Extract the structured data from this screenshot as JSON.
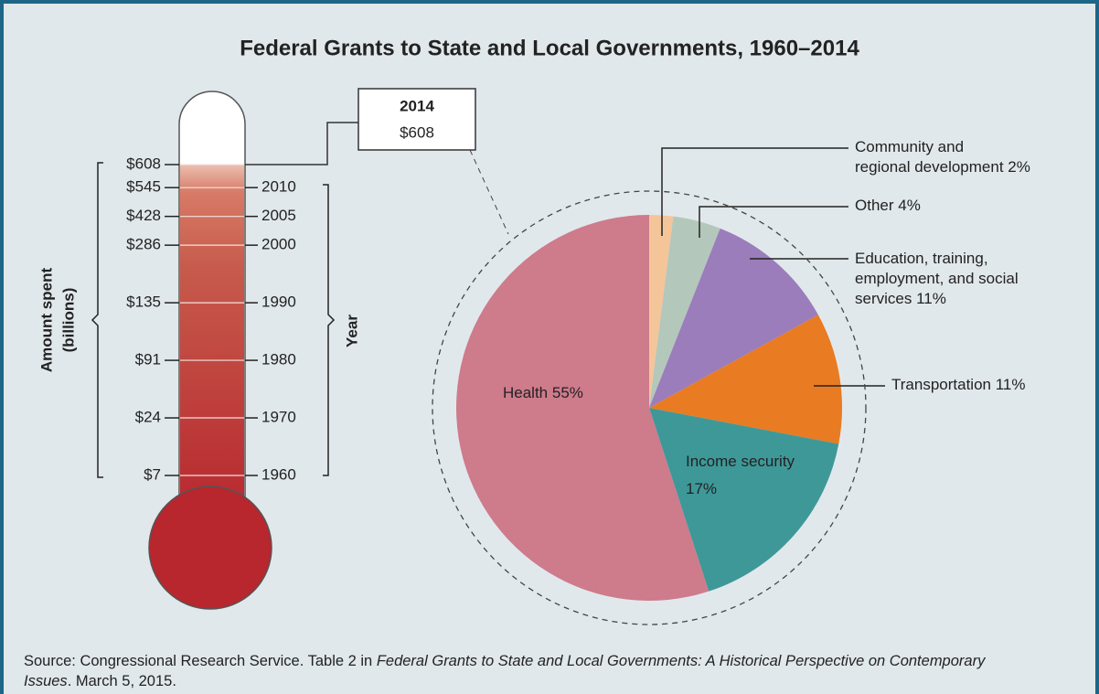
{
  "chart_data": [
    {
      "type": "thermometer",
      "title": "Federal Grants to State and Local Governments, 1960–2014",
      "y_label_lines": [
        "Amount spent",
        "(billions)"
      ],
      "x_label": "Year",
      "x": [
        1960,
        1970,
        1980,
        1990,
        2000,
        2005,
        2010,
        2014
      ],
      "values": [
        7,
        24,
        91,
        135,
        286,
        428,
        545,
        608
      ],
      "value_labels": [
        "$7",
        "$24",
        "$91",
        "$135",
        "$286",
        "$428",
        "$545",
        "$608"
      ],
      "xlim": [
        1960,
        2014
      ],
      "xticks": [
        1960,
        1970,
        1980,
        1990,
        2000,
        2005,
        2010
      ]
    },
    {
      "type": "pie",
      "categories": [
        "Community and regional development",
        "Other",
        "Education, training, employment, and social services",
        "Transportation",
        "Income security",
        "Health"
      ],
      "values": [
        2,
        4,
        11,
        11,
        17,
        55
      ],
      "value_labels": [
        "2%",
        "4%",
        "11%",
        "11%",
        "17%",
        "55%"
      ],
      "colors": [
        "#f5c59a",
        "#b4c7bb",
        "#9b7dbb",
        "#e97b22",
        "#3f9898",
        "#ce7b8c"
      ]
    }
  ],
  "source": {
    "prefix": "Source: Congressional Research Service. Table 2 in ",
    "title": "Federal Grants to State and Local Governments: A Historical Perspective on Contemporary Issues",
    "suffix": ". March 5, 2015."
  }
}
